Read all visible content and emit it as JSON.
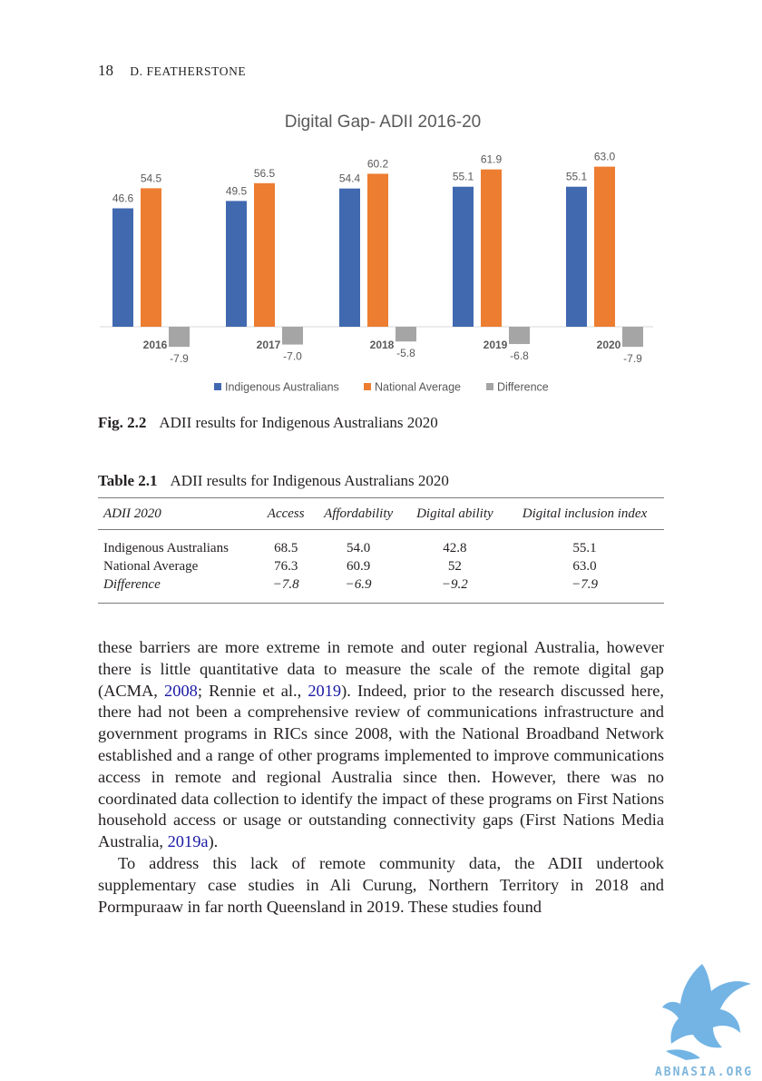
{
  "running_head": {
    "page_number": "18",
    "author": "D. FEATHERSTONE"
  },
  "chart_data": {
    "type": "bar",
    "title": "Digital Gap- ADII 2016-20",
    "categories": [
      "2016",
      "2017",
      "2018",
      "2019",
      "2020"
    ],
    "series": [
      {
        "name": "Indigenous Australians",
        "color": "#4169b0",
        "values": [
          46.6,
          49.5,
          54.4,
          55.1,
          55.1
        ],
        "labels": [
          "46.6",
          "49.5",
          "54.4",
          "55.1",
          "55.1"
        ]
      },
      {
        "name": "National Average",
        "color": "#ed7d31",
        "values": [
          54.5,
          56.5,
          60.2,
          61.9,
          63.0
        ],
        "labels": [
          "54.5",
          "56.5",
          "60.2",
          "61.9",
          "63.0"
        ]
      },
      {
        "name": "Difference",
        "color": "#a5a5a5",
        "values": [
          -7.9,
          -7.0,
          -5.8,
          -6.8,
          -7.9
        ],
        "labels": [
          "-7.9",
          "-7.0",
          "-5.8",
          "-6.8",
          "-7.9"
        ]
      }
    ],
    "ylim": [
      -8,
      66
    ],
    "legend": "bottom",
    "grid": false
  },
  "figure": {
    "label": "Fig. 2.2",
    "caption": "ADII results for Indigenous Australians 2020"
  },
  "table": {
    "label": "Table 2.1",
    "caption": "ADII results for Indigenous Australians 2020",
    "headers": [
      "ADII 2020",
      "Access",
      "Affordability",
      "Digital ability",
      "Digital inclusion index"
    ],
    "rows": [
      [
        "Indigenous Australians",
        "68.5",
        "54.0",
        "42.8",
        "55.1"
      ],
      [
        "National Average",
        "76.3",
        "60.9",
        "52",
        "63.0"
      ],
      [
        "Difference",
        "−7.8",
        "−6.9",
        "−9.2",
        "−7.9"
      ]
    ]
  },
  "body": {
    "p1_a": "these barriers are more extreme in remote and outer regional Australia, however there is little quantitative data to measure the scale of the remote digital gap (ACMA, ",
    "p1_cite1": "2008",
    "p1_b": "; Rennie et al., ",
    "p1_cite2": "2019",
    "p1_c": "). Indeed, prior to the research discussed here, there had not been a comprehensive review of communications infrastructure and government programs in RICs since 2008, with the National Broadband Network established and a range of other programs implemented to improve communications access in remote and regional Australia since then. However, there was no coordinated data collection to identify the impact of these programs on First Nations household access or usage or outstanding connectivity gaps (First Nations Media Australia, ",
    "p1_cite3": "2019a",
    "p1_d": ").",
    "p2": "To address this lack of remote community data, the ADII undertook supplementary case studies in Ali Curung, Northern Territory in 2018 and Pormpuraaw in far north Queensland in 2019. These studies found"
  },
  "watermark": {
    "text": "ABNASIA.ORG",
    "color": "#5aa7e0"
  }
}
